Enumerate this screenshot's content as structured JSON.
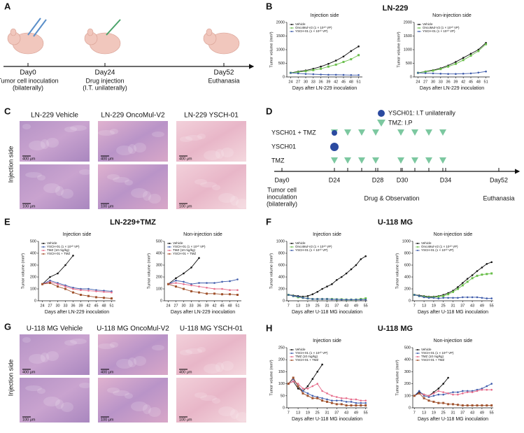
{
  "panels": {
    "letters": [
      "A",
      "B",
      "C",
      "D",
      "E",
      "F",
      "G",
      "H"
    ],
    "a": {
      "days": [
        "Day0",
        "Day24",
        "Day52"
      ],
      "notes": [
        [
          "Tumor cell inoculation",
          "(bilaterally)"
        ],
        [
          "Drug injection",
          "(I.T. unilaterally)"
        ],
        [
          "Euthanasia"
        ]
      ]
    },
    "b_title": "LN-229",
    "c": {
      "labels": [
        "LN-229 Vehicle",
        "LN-229 OncoMul-V2",
        "LN-229 YSCH-01"
      ],
      "side": "Injection side",
      "scales": [
        "400 μm",
        "100 μm"
      ]
    },
    "d": {
      "legend": [
        "YSCH01: I.T unilaterally",
        "TMZ: I.P"
      ],
      "rows": [
        "YSCH01 + TMZ",
        "YSCH01",
        "TMZ"
      ],
      "days": [
        "Day0",
        "D24",
        "D28",
        "D30",
        "D34",
        "Day52"
      ],
      "notes": [
        [
          "Tumor cell",
          "inoculation",
          "(bilaterally)"
        ],
        "Drug & Observation",
        "Euthanasia"
      ]
    },
    "e_title": "LN-229+TMZ",
    "f_title": "U-118 MG",
    "g": {
      "labels": [
        "U-118 MG Vehicle",
        "U-118 MG OncoMul-V2",
        "U-118 MG YSCH-01"
      ],
      "side": "Injection side",
      "scales": [
        "400 μm",
        "100 μm"
      ]
    },
    "h_title": "U-118 MG"
  },
  "chart_data": [
    {
      "type": "line",
      "title": "Injection side",
      "xlabel": "Days after LN-229 inoculation",
      "ylabel": "Tumor volume (mm³)",
      "x": [
        24,
        27,
        30,
        33,
        36,
        39,
        42,
        45,
        48,
        51
      ],
      "xlim": [
        22.5,
        52.5
      ],
      "xticks": [
        24,
        27,
        30,
        33,
        36,
        39,
        42,
        45,
        48,
        51
      ],
      "ylim": [
        0,
        2000
      ],
      "yticks": [
        0,
        500,
        1000,
        1500,
        2000
      ],
      "series": [
        {
          "name": "Vehicle",
          "color": "#111111",
          "marker": "circle",
          "values": [
            150,
            200,
            240,
            300,
            380,
            480,
            600,
            750,
            950,
            1120
          ]
        },
        {
          "name": "OncoMul-V2 (1 × 10¹⁰ VP)",
          "color": "#6abf4b",
          "marker": "square",
          "values": [
            150,
            180,
            210,
            250,
            300,
            380,
            450,
            550,
            650,
            800
          ]
        },
        {
          "name": "YSCH-01 (1 × 10¹⁰ VP)",
          "color": "#3e5bab",
          "marker": "circle",
          "values": [
            150,
            130,
            110,
            100,
            90,
            80,
            80,
            75,
            70,
            70
          ]
        }
      ]
    },
    {
      "type": "line",
      "title": "Non-injection side",
      "xlabel": "Days after LN-229 inoculation",
      "ylabel": "Tumor volume (mm³)",
      "x": [
        24,
        27,
        30,
        33,
        36,
        39,
        42,
        45,
        48,
        51
      ],
      "xlim": [
        22.5,
        52.5
      ],
      "xticks": [
        24,
        27,
        30,
        33,
        36,
        39,
        42,
        45,
        48,
        51
      ],
      "ylim": [
        0,
        2000
      ],
      "yticks": [
        0,
        500,
        1000,
        1500,
        2000
      ],
      "series": [
        {
          "name": "Vehicle",
          "color": "#111111",
          "marker": "circle",
          "values": [
            150,
            200,
            250,
            320,
            420,
            550,
            700,
            850,
            1000,
            1250
          ]
        },
        {
          "name": "OncoMul-V2 (1 × 10¹⁰ VP)",
          "color": "#6abf4b",
          "marker": "square",
          "values": [
            150,
            190,
            230,
            290,
            380,
            480,
            620,
            780,
            950,
            1200
          ]
        },
        {
          "name": "YSCH-01 (1 × 10¹⁰ VP)",
          "color": "#3e5bab",
          "marker": "circle",
          "values": [
            150,
            140,
            130,
            120,
            110,
            110,
            120,
            130,
            160,
            200
          ]
        }
      ]
    },
    {
      "type": "line",
      "title": "Injection side",
      "xlabel": "Days after LN-229 inoculation",
      "ylabel": "Tumor volume (mm³)",
      "x": [
        24,
        27,
        30,
        33,
        36,
        39,
        42,
        45,
        48,
        51
      ],
      "xlim": [
        22.5,
        52.5
      ],
      "xticks": [
        24,
        27,
        30,
        33,
        36,
        39,
        42,
        45,
        48,
        51
      ],
      "ylim": [
        0,
        500
      ],
      "yticks": [
        0,
        100,
        200,
        300,
        400,
        500
      ],
      "series": [
        {
          "name": "Vehicle",
          "color": "#111111",
          "marker": "circle",
          "values": [
            140,
            200,
            230,
            300,
            380,
            null,
            null,
            null,
            null,
            null
          ]
        },
        {
          "name": "YSCH-01 (1 × 10¹⁰ VP)",
          "color": "#3e5bab",
          "marker": "circle",
          "values": [
            140,
            170,
            150,
            130,
            110,
            100,
            100,
            90,
            85,
            80
          ]
        },
        {
          "name": "TMZ (10 mg/kg)",
          "color": "#e66b8a",
          "marker": "circle",
          "values": [
            140,
            160,
            140,
            120,
            100,
            90,
            85,
            80,
            75,
            70
          ]
        },
        {
          "name": "YSCH-01 + TMZ",
          "color": "#a0522d",
          "marker": "square",
          "values": [
            140,
            150,
            120,
            100,
            70,
            50,
            40,
            30,
            25,
            20
          ]
        }
      ]
    },
    {
      "type": "line",
      "title": "Non-injection side",
      "xlabel": "Days after LN-229 inoculation",
      "ylabel": "Tumor volume (mm³)",
      "x": [
        24,
        27,
        30,
        33,
        36,
        39,
        42,
        45,
        48,
        51
      ],
      "xlim": [
        22.5,
        52.5
      ],
      "xticks": [
        24,
        27,
        30,
        33,
        36,
        39,
        42,
        45,
        48,
        51
      ],
      "ylim": [
        0,
        500
      ],
      "yticks": [
        0,
        100,
        200,
        300,
        400,
        500
      ],
      "series": [
        {
          "name": "Vehicle",
          "color": "#111111",
          "marker": "circle",
          "values": [
            140,
            190,
            230,
            280,
            360,
            null,
            null,
            null,
            null,
            null
          ]
        },
        {
          "name": "YSCH-01 (1 × 10¹⁰ VP)",
          "color": "#3e5bab",
          "marker": "circle",
          "values": [
            140,
            170,
            160,
            140,
            150,
            150,
            150,
            160,
            165,
            180
          ]
        },
        {
          "name": "TMZ (10 mg/kg)",
          "color": "#e66b8a",
          "marker": "circle",
          "values": [
            140,
            150,
            140,
            130,
            120,
            110,
            100,
            100,
            90,
            90
          ]
        },
        {
          "name": "YSCH-01 + TMZ",
          "color": "#a0522d",
          "marker": "square",
          "values": [
            140,
            120,
            100,
            80,
            70,
            60,
            60,
            55,
            55,
            50
          ]
        }
      ]
    },
    {
      "type": "line",
      "title": "Injection side",
      "xlabel": "Days after U-118 MG inoculation",
      "ylabel": "Tumor volume (mm³)",
      "x": [
        7,
        10,
        13,
        16,
        19,
        22,
        25,
        28,
        31,
        34,
        37,
        40,
        43,
        46,
        49,
        52,
        55
      ],
      "xlim": [
        6,
        56
      ],
      "xticks": [
        7,
        13,
        19,
        25,
        31,
        37,
        43,
        49,
        55
      ],
      "ylim": [
        0,
        1000
      ],
      "yticks": [
        0,
        200,
        400,
        600,
        800,
        1000
      ],
      "series": [
        {
          "name": "Vehicle",
          "color": "#111111",
          "marker": "circle",
          "values": [
            100,
            90,
            80,
            70,
            80,
            110,
            150,
            200,
            240,
            280,
            350,
            400,
            460,
            530,
            600,
            700,
            750
          ]
        },
        {
          "name": "OncoMul-V2 (1 × 10¹⁰ VP)",
          "color": "#6abf4b",
          "marker": "square",
          "values": [
            100,
            80,
            60,
            50,
            40,
            30,
            30,
            30,
            30,
            30,
            25,
            25,
            20,
            20,
            20,
            30,
            40
          ]
        },
        {
          "name": "YSCH-01 (1 × 10¹⁰ VP)",
          "color": "#3e5bab",
          "marker": "circle",
          "values": [
            100,
            80,
            70,
            50,
            40,
            30,
            30,
            30,
            30,
            25,
            25,
            20,
            20,
            20,
            20,
            20,
            20
          ]
        }
      ]
    },
    {
      "type": "line",
      "title": "Non-injection side",
      "xlabel": "Days after U-118 MG inoculation",
      "ylabel": "Tumor volume (mm³)",
      "x": [
        7,
        10,
        13,
        16,
        19,
        22,
        25,
        28,
        31,
        34,
        37,
        40,
        43,
        46,
        49,
        52,
        55
      ],
      "xlim": [
        6,
        56
      ],
      "xticks": [
        7,
        13,
        19,
        25,
        31,
        37,
        43,
        49,
        55
      ],
      "ylim": [
        0,
        1000
      ],
      "yticks": [
        0,
        200,
        400,
        600,
        800,
        1000
      ],
      "series": [
        {
          "name": "Vehicle",
          "color": "#111111",
          "marker": "circle",
          "values": [
            100,
            90,
            80,
            70,
            70,
            80,
            100,
            130,
            170,
            230,
            300,
            370,
            430,
            500,
            560,
            620,
            650
          ]
        },
        {
          "name": "OncoMul-V2 (1 × 10¹⁰ VP)",
          "color": "#6abf4b",
          "marker": "square",
          "values": [
            100,
            80,
            70,
            60,
            60,
            70,
            80,
            110,
            150,
            200,
            260,
            320,
            380,
            420,
            440,
            450,
            460
          ]
        },
        {
          "name": "YSCH-01 (1 × 10¹⁰ VP)",
          "color": "#3e5bab",
          "marker": "circle",
          "values": [
            100,
            80,
            60,
            50,
            50,
            40,
            50,
            50,
            50,
            50,
            60,
            60,
            60,
            60,
            50,
            40,
            40
          ]
        }
      ]
    },
    {
      "type": "line",
      "title": "Injection side",
      "xlabel": "Days after U-118 MG inoculation",
      "ylabel": "Tumor volume (mm³)",
      "x": [
        7,
        10,
        13,
        16,
        19,
        22,
        25,
        28,
        31,
        34,
        37,
        40,
        43,
        46,
        49,
        52,
        55
      ],
      "xlim": [
        6,
        56
      ],
      "xticks": [
        7,
        13,
        19,
        25,
        31,
        37,
        43,
        49,
        55
      ],
      "ylim": [
        0,
        250
      ],
      "yticks": [
        0,
        50,
        100,
        150,
        200,
        250
      ],
      "series": [
        {
          "name": "Vehicle",
          "color": "#111111",
          "marker": "circle",
          "values": [
            100,
            110,
            80,
            70,
            90,
            120,
            150,
            180,
            null,
            null,
            null,
            null,
            null,
            null,
            null,
            null,
            null
          ]
        },
        {
          "name": "YSCH-01 (1 × 10¹⁰ VP)",
          "color": "#3e5bab",
          "marker": "circle",
          "values": [
            100,
            120,
            90,
            70,
            60,
            50,
            45,
            40,
            35,
            30,
            30,
            30,
            25,
            25,
            20,
            20,
            20
          ]
        },
        {
          "name": "TMZ (10 mg/kg)",
          "color": "#e66b8a",
          "marker": "circle",
          "values": [
            100,
            110,
            100,
            80,
            80,
            90,
            100,
            70,
            60,
            50,
            45,
            40,
            40,
            35,
            35,
            30,
            30
          ]
        },
        {
          "name": "YSCH-01 + TMZ",
          "color": "#a0522d",
          "marker": "square",
          "values": [
            100,
            125,
            90,
            60,
            50,
            40,
            40,
            30,
            25,
            20,
            15,
            15,
            10,
            10,
            10,
            10,
            10
          ]
        }
      ]
    },
    {
      "type": "line",
      "title": "Non-injection side",
      "xlabel": "Days after U-118 MG inoculation",
      "ylabel": "Tumor volume (mm³)",
      "x": [
        7,
        10,
        13,
        16,
        19,
        22,
        25,
        28,
        31,
        34,
        37,
        40,
        43,
        46,
        49,
        52,
        55
      ],
      "xlim": [
        6,
        56
      ],
      "xticks": [
        7,
        13,
        19,
        25,
        31,
        37,
        43,
        49,
        55
      ],
      "ylim": [
        0,
        500
      ],
      "yticks": [
        0,
        100,
        200,
        300,
        400,
        500
      ],
      "series": [
        {
          "name": "Vehicle",
          "color": "#111111",
          "marker": "circle",
          "values": [
            100,
            130,
            110,
            100,
            130,
            160,
            200,
            250,
            null,
            null,
            null,
            null,
            null,
            null,
            null,
            null,
            null
          ]
        },
        {
          "name": "YSCH-01 (1 × 10¹⁰ VP)",
          "color": "#3e5bab",
          "marker": "circle",
          "values": [
            100,
            140,
            100,
            90,
            100,
            110,
            110,
            120,
            130,
            130,
            140,
            140,
            140,
            150,
            160,
            180,
            200
          ]
        },
        {
          "name": "TMZ (10 mg/kg)",
          "color": "#e66b8a",
          "marker": "circle",
          "values": [
            100,
            120,
            110,
            100,
            120,
            140,
            130,
            120,
            110,
            110,
            120,
            130,
            130,
            140,
            150,
            150,
            150
          ]
        },
        {
          "name": "YSCH-01 + TMZ",
          "color": "#a0522d",
          "marker": "square",
          "values": [
            100,
            120,
            80,
            60,
            50,
            40,
            40,
            30,
            30,
            25,
            20,
            20,
            20,
            20,
            20,
            20,
            20
          ]
        }
      ]
    }
  ]
}
